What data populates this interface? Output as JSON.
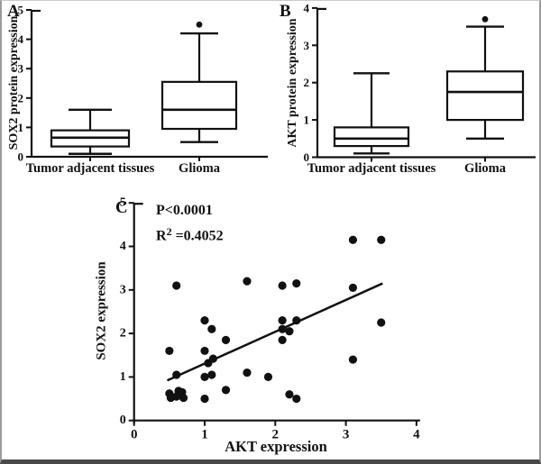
{
  "colors": {
    "ink": "#111111",
    "background": "#ffffff",
    "border_side": "#9b9b9b",
    "border_bottom": "#484848"
  },
  "chart_data": [
    {
      "type": "box",
      "panel_label": "A",
      "ylabel": "SOX2 protein expression",
      "categories": [
        "Tumor adjacent tissues",
        "Glioma"
      ],
      "ylim": [
        0,
        5
      ],
      "yticks": [
        0,
        1,
        2,
        3,
        4,
        5
      ],
      "boxes": [
        {
          "category": "Tumor adjacent tissues",
          "min": 0.1,
          "q1": 0.35,
          "median": 0.65,
          "q3": 0.9,
          "max": 1.6,
          "outliers": []
        },
        {
          "category": "Glioma",
          "min": 0.5,
          "q1": 0.95,
          "median": 1.6,
          "q3": 2.55,
          "max": 4.2,
          "outliers": [
            4.5
          ]
        }
      ]
    },
    {
      "type": "box",
      "panel_label": "B",
      "ylabel": "AKT protein expression",
      "categories": [
        "Tumor adjacent tissues",
        "Glioma"
      ],
      "ylim": [
        0,
        4
      ],
      "yticks": [
        0,
        1,
        2,
        3,
        4
      ],
      "boxes": [
        {
          "category": "Tumor adjacent tissues",
          "min": 0.1,
          "q1": 0.3,
          "median": 0.5,
          "q3": 0.8,
          "max": 2.25,
          "outliers": []
        },
        {
          "category": "Glioma",
          "min": 0.5,
          "q1": 1.0,
          "median": 1.75,
          "q3": 2.3,
          "max": 3.5,
          "outliers": [
            3.7
          ]
        }
      ]
    },
    {
      "type": "scatter",
      "panel_label": "C",
      "xlabel": "AKT expression",
      "ylabel": "SOX2 expression",
      "xlim": [
        0,
        4
      ],
      "ylim": [
        0,
        5
      ],
      "xticks": [
        0,
        1,
        2,
        3,
        4
      ],
      "yticks": [
        0,
        1,
        2,
        3,
        4,
        5
      ],
      "annotation_p": "P<0.0001",
      "annotation_r2": {
        "base": "R",
        "sup": "2",
        "rest": " =0.4052"
      },
      "points": [
        [
          0.5,
          0.62
        ],
        [
          0.52,
          0.52
        ],
        [
          0.6,
          0.55
        ],
        [
          0.63,
          0.68
        ],
        [
          0.68,
          0.65
        ],
        [
          0.7,
          0.52
        ],
        [
          0.6,
          1.05
        ],
        [
          0.5,
          1.6
        ],
        [
          0.6,
          3.1
        ],
        [
          1.0,
          0.5
        ],
        [
          1.0,
          1.0
        ],
        [
          1.1,
          1.05
        ],
        [
          1.05,
          1.32
        ],
        [
          1.12,
          1.42
        ],
        [
          1.0,
          1.6
        ],
        [
          1.0,
          2.3
        ],
        [
          1.1,
          2.1
        ],
        [
          1.3,
          1.85
        ],
        [
          1.3,
          0.7
        ],
        [
          1.6,
          1.1
        ],
        [
          1.6,
          3.2
        ],
        [
          1.9,
          1.0
        ],
        [
          2.1,
          3.1
        ],
        [
          2.3,
          3.15
        ],
        [
          2.1,
          2.3
        ],
        [
          2.3,
          2.3
        ],
        [
          2.1,
          2.1
        ],
        [
          2.2,
          2.05
        ],
        [
          2.1,
          1.85
        ],
        [
          2.2,
          0.6
        ],
        [
          2.3,
          0.5
        ],
        [
          3.1,
          4.15
        ],
        [
          3.5,
          4.15
        ],
        [
          3.1,
          3.05
        ],
        [
          3.5,
          2.25
        ],
        [
          3.1,
          1.4
        ]
      ],
      "regression_line": {
        "x1": 0.47,
        "y1": 0.92,
        "x2": 3.52,
        "y2": 3.15
      }
    }
  ]
}
